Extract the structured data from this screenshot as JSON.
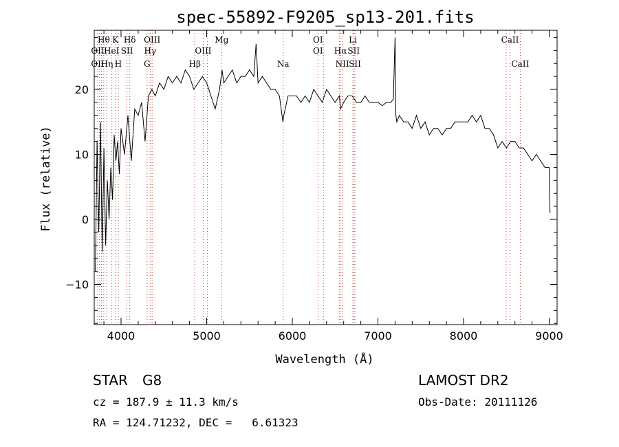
{
  "chart_data": {
    "type": "line",
    "title": "spec-55892-F9205_sp13-201.fits",
    "xlabel": "Wavelength (Å)",
    "ylabel": "Flux (relative)",
    "xlim": [
      3700,
      9080
    ],
    "ylim": [
      -16.5,
      29
    ],
    "xticks": [
      4000,
      5000,
      6000,
      7000,
      8000,
      9000
    ],
    "yticks": [
      -10,
      0,
      10,
      20
    ],
    "grid": false,
    "series": [
      {
        "x": [
          3700,
          3720,
          3740,
          3760,
          3780,
          3800,
          3820,
          3840,
          3860,
          3880,
          3900,
          3920,
          3940,
          3960,
          3980,
          4000,
          4040,
          4080,
          4120,
          4160,
          4200,
          4240,
          4280,
          4320,
          4360,
          4400,
          4450,
          4500,
          4550,
          4600,
          4650,
          4700,
          4750,
          4800,
          4850,
          4900,
          4950,
          5000,
          5050,
          5100,
          5150,
          5180,
          5200,
          5250,
          5300,
          5350,
          5400,
          5450,
          5500,
          5550,
          5577,
          5600,
          5650,
          5700,
          5750,
          5800,
          5850,
          5890,
          5900,
          5950,
          6000,
          6050,
          6100,
          6150,
          6200,
          6250,
          6300,
          6350,
          6400,
          6450,
          6500,
          6550,
          6563,
          6600,
          6650,
          6700,
          6750,
          6800,
          6850,
          6900,
          6950,
          7000,
          7050,
          7100,
          7150,
          7180,
          7200,
          7210,
          7220,
          7250,
          7300,
          7350,
          7400,
          7450,
          7500,
          7550,
          7600,
          7650,
          7700,
          7750,
          7800,
          7850,
          7900,
          7950,
          8000,
          8050,
          8100,
          8150,
          8200,
          8250,
          8300,
          8350,
          8400,
          8450,
          8500,
          8550,
          8600,
          8650,
          8700,
          8750,
          8800,
          8850,
          8900,
          8950,
          9000,
          9010
        ],
        "y": [
          -8,
          12,
          -2,
          15,
          -5,
          11,
          -4,
          6,
          0,
          8,
          3,
          13,
          9,
          12,
          7,
          14,
          10,
          16,
          9,
          17,
          16,
          18,
          12,
          19,
          20,
          19,
          21,
          20,
          22,
          21,
          22,
          21,
          23,
          22,
          20,
          21,
          22,
          21,
          19,
          17,
          20,
          23,
          21,
          22,
          23,
          21,
          22,
          22,
          23,
          22,
          27,
          21,
          22,
          21,
          20,
          20,
          19,
          15,
          16,
          19,
          19,
          19,
          18,
          19,
          18,
          20,
          19,
          18,
          20,
          19,
          18,
          19,
          17,
          18,
          19,
          19,
          18,
          18,
          19,
          18,
          18,
          18,
          17.5,
          18,
          18,
          18.5,
          28,
          16,
          15,
          16,
          15,
          15,
          14,
          16,
          14,
          15,
          13,
          14,
          14,
          13,
          14,
          14,
          15,
          15,
          15,
          15,
          16,
          15,
          16,
          14,
          14,
          13,
          11,
          12,
          11,
          12,
          12,
          11,
          11,
          10,
          9,
          10,
          9,
          8,
          8,
          1
        ],
        "color": "#000000"
      }
    ],
    "line_marks": [
      {
        "text": "Hθ",
        "row": 1,
        "x": 3798
      },
      {
        "text": "K",
        "row": 1,
        "x": 3934
      },
      {
        "text": "Hδ",
        "row": 1,
        "x": 4102
      },
      {
        "text": "OIII",
        "row": 1,
        "x": 4363
      },
      {
        "text": "Mg",
        "row": 1,
        "x": 5175
      },
      {
        "text": "OI",
        "row": 1,
        "x": 6300
      },
      {
        "text": "Li",
        "row": 1,
        "x": 6708
      },
      {
        "text": "CaII",
        "row": 1,
        "x": 8542
      },
      {
        "text": "OII",
        "row": 2,
        "x": 3727
      },
      {
        "text": "HeI",
        "row": 2,
        "x": 3889
      },
      {
        "text": "SII",
        "row": 2,
        "x": 4069
      },
      {
        "text": "Hγ",
        "row": 2,
        "x": 4340
      },
      {
        "text": "OIII",
        "row": 2,
        "x": 4959
      },
      {
        "text": "OI",
        "row": 2,
        "x": 6300
      },
      {
        "text": "Hα",
        "row": 2,
        "x": 6563
      },
      {
        "text": "SII",
        "row": 2,
        "x": 6717
      },
      {
        "text": "OII",
        "row": 3,
        "x": 3727
      },
      {
        "text": "Hη",
        "row": 3,
        "x": 3835
      },
      {
        "text": "H",
        "row": 3,
        "x": 3968
      },
      {
        "text": "G",
        "row": 3,
        "x": 4304
      },
      {
        "text": "Hβ",
        "row": 3,
        "x": 4861
      },
      {
        "text": "Na",
        "row": 3,
        "x": 5893
      },
      {
        "text": "NII",
        "row": 3,
        "x": 6583
      },
      {
        "text": "SII",
        "row": 3,
        "x": 6731
      },
      {
        "text": "CaII",
        "row": 3,
        "x": 8662
      }
    ],
    "line_positions": [
      3727,
      3750,
      3771,
      3798,
      3835,
      3889,
      3934,
      3968,
      4069,
      4102,
      4304,
      4340,
      4363,
      4861,
      4959,
      5007,
      5175,
      5893,
      6300,
      6363,
      6548,
      6563,
      6583,
      6708,
      6717,
      6731,
      8498,
      8542,
      8662
    ]
  },
  "info": {
    "object_class": "STAR",
    "subclass": "G8",
    "survey": "LAMOST DR2",
    "cz": "cz = 187.9 ± 11.3 km/s",
    "obs_date": "Obs-Date: 20111126",
    "coords": "RA = 124.71232, DEC =   6.61323"
  }
}
